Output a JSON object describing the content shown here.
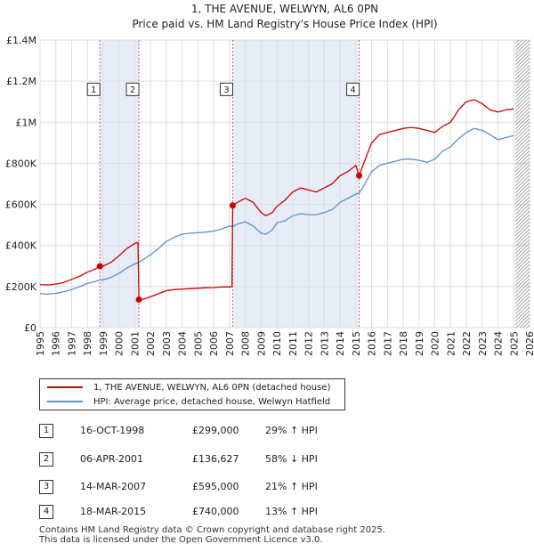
{
  "chart_data": {
    "type": "line",
    "title": "1, THE AVENUE, WELWYN, AL6 0PN",
    "subtitle": "Price paid vs. HM Land Registry's House Price Index (HPI)",
    "xlim": [
      1995,
      2026
    ],
    "ylim": [
      0,
      1400000
    ],
    "x_ticks": [
      "1995",
      "1996",
      "1997",
      "1998",
      "1999",
      "2000",
      "2001",
      "2002",
      "2003",
      "2004",
      "2005",
      "2006",
      "2007",
      "2008",
      "2009",
      "2010",
      "2011",
      "2012",
      "2013",
      "2014",
      "2015",
      "2016",
      "2017",
      "2018",
      "2019",
      "2020",
      "2021",
      "2022",
      "2023",
      "2024",
      "2025",
      "2026"
    ],
    "y_ticks": [
      {
        "value": 0,
        "label": "£0"
      },
      {
        "value": 200000,
        "label": "£200K"
      },
      {
        "value": 400000,
        "label": "£400K"
      },
      {
        "value": 600000,
        "label": "£600K"
      },
      {
        "value": 800000,
        "label": "£800K"
      },
      {
        "value": 1000000,
        "label": "£1M"
      },
      {
        "value": 1200000,
        "label": "£1.2M"
      },
      {
        "value": 1400000,
        "label": "£1.4M"
      }
    ],
    "shaded_periods": [
      [
        1998.79,
        2001.26
      ],
      [
        2007.2,
        2015.21
      ]
    ],
    "future_hatch_from": 2025.1,
    "series": [
      {
        "name": "1, THE AVENUE, WELWYN, AL6 0PN (detached house)",
        "color": "#cc0000",
        "x": [
          1995,
          1995.5,
          1996,
          1996.5,
          1997,
          1997.5,
          1998,
          1998.5,
          1998.79,
          1999,
          1999.5,
          2000,
          2000.5,
          2001,
          2001.2,
          2001.26,
          2001.5,
          2002,
          2002.5,
          2003,
          2003.5,
          2004,
          2004.5,
          2005,
          2005.5,
          2006,
          2006.5,
          2007,
          2007.15,
          2007.2,
          2007.5,
          2008,
          2008.5,
          2009,
          2009.3,
          2009.7,
          2010,
          2010.5,
          2011,
          2011.5,
          2012,
          2012.5,
          2013,
          2013.5,
          2014,
          2014.5,
          2015,
          2015.21,
          2015.5,
          2016,
          2016.5,
          2017,
          2017.5,
          2018,
          2018.5,
          2019,
          2019.5,
          2020,
          2020.5,
          2021,
          2021.5,
          2022,
          2022.5,
          2023,
          2023.5,
          2024,
          2024.5,
          2025
        ],
        "values": [
          210000,
          208000,
          212000,
          220000,
          235000,
          250000,
          270000,
          285000,
          299000,
          300000,
          318000,
          350000,
          385000,
          410000,
          415000,
          136627,
          138000,
          150000,
          165000,
          180000,
          185000,
          188000,
          190000,
          192000,
          194000,
          195000,
          198000,
          198000,
          200000,
          595000,
          610000,
          630000,
          610000,
          560000,
          545000,
          560000,
          590000,
          620000,
          660000,
          680000,
          670000,
          660000,
          680000,
          700000,
          740000,
          760000,
          790000,
          740000,
          800000,
          900000,
          940000,
          950000,
          960000,
          970000,
          975000,
          970000,
          960000,
          950000,
          980000,
          1000000,
          1060000,
          1100000,
          1110000,
          1090000,
          1060000,
          1050000,
          1060000,
          1065000
        ]
      },
      {
        "name": "HPI: Average price, detached house, Welwyn Hatfield",
        "color": "#5b8fc9",
        "x": [
          1995,
          1995.5,
          1996,
          1996.5,
          1997,
          1997.5,
          1998,
          1998.5,
          1998.79,
          1999,
          1999.5,
          2000,
          2000.5,
          2001,
          2001.26,
          2001.5,
          2002,
          2002.5,
          2003,
          2003.5,
          2004,
          2004.5,
          2005,
          2005.5,
          2006,
          2006.5,
          2007,
          2007.2,
          2007.5,
          2008,
          2008.5,
          2009,
          2009.3,
          2009.7,
          2010,
          2010.5,
          2011,
          2011.5,
          2012,
          2012.5,
          2013,
          2013.5,
          2014,
          2014.5,
          2015,
          2015.21,
          2015.5,
          2016,
          2016.5,
          2017,
          2017.5,
          2018,
          2018.5,
          2019,
          2019.5,
          2020,
          2020.5,
          2021,
          2021.5,
          2022,
          2022.5,
          2023,
          2023.5,
          2024,
          2024.5,
          2025
        ],
        "values": [
          165000,
          163000,
          167000,
          175000,
          185000,
          200000,
          215000,
          225000,
          232000,
          233000,
          245000,
          265000,
          290000,
          310000,
          318000,
          330000,
          355000,
          385000,
          420000,
          440000,
          455000,
          460000,
          462000,
          465000,
          470000,
          480000,
          495000,
          492000,
          505000,
          515000,
          495000,
          460000,
          455000,
          475000,
          510000,
          520000,
          545000,
          555000,
          550000,
          550000,
          560000,
          575000,
          610000,
          630000,
          650000,
          655000,
          690000,
          760000,
          790000,
          800000,
          810000,
          820000,
          820000,
          815000,
          805000,
          820000,
          860000,
          880000,
          920000,
          950000,
          970000,
          960000,
          940000,
          915000,
          925000,
          935000
        ]
      }
    ],
    "transactions": [
      {
        "n": "1",
        "x": 1998.79,
        "price": 299000,
        "date": "16-OCT-1998",
        "price_label": "£299,000",
        "hpi": "29% ↑ HPI"
      },
      {
        "n": "2",
        "x": 2001.26,
        "price": 136627,
        "date": "06-APR-2001",
        "price_label": "£136,627",
        "hpi": "58% ↓ HPI"
      },
      {
        "n": "3",
        "x": 2007.2,
        "price": 595000,
        "date": "14-MAR-2007",
        "price_label": "£595,000",
        "hpi": "21% ↑ HPI"
      },
      {
        "n": "4",
        "x": 2015.21,
        "price": 740000,
        "date": "18-MAR-2015",
        "price_label": "£740,000",
        "hpi": "13% ↑ HPI"
      }
    ],
    "marker_label_value": 1160000
  },
  "legend": {
    "items": [
      {
        "label": "1, THE AVENUE, WELWYN, AL6 0PN (detached house)",
        "color": "#cc0000"
      },
      {
        "label": "HPI: Average price, detached house, Welwyn Hatfield",
        "color": "#5b8fc9"
      }
    ]
  },
  "footer": {
    "line1": "Contains HM Land Registry data © Crown copyright and database right 2025.",
    "line2": "This data is licensed under the Open Government Licence v3.0."
  }
}
